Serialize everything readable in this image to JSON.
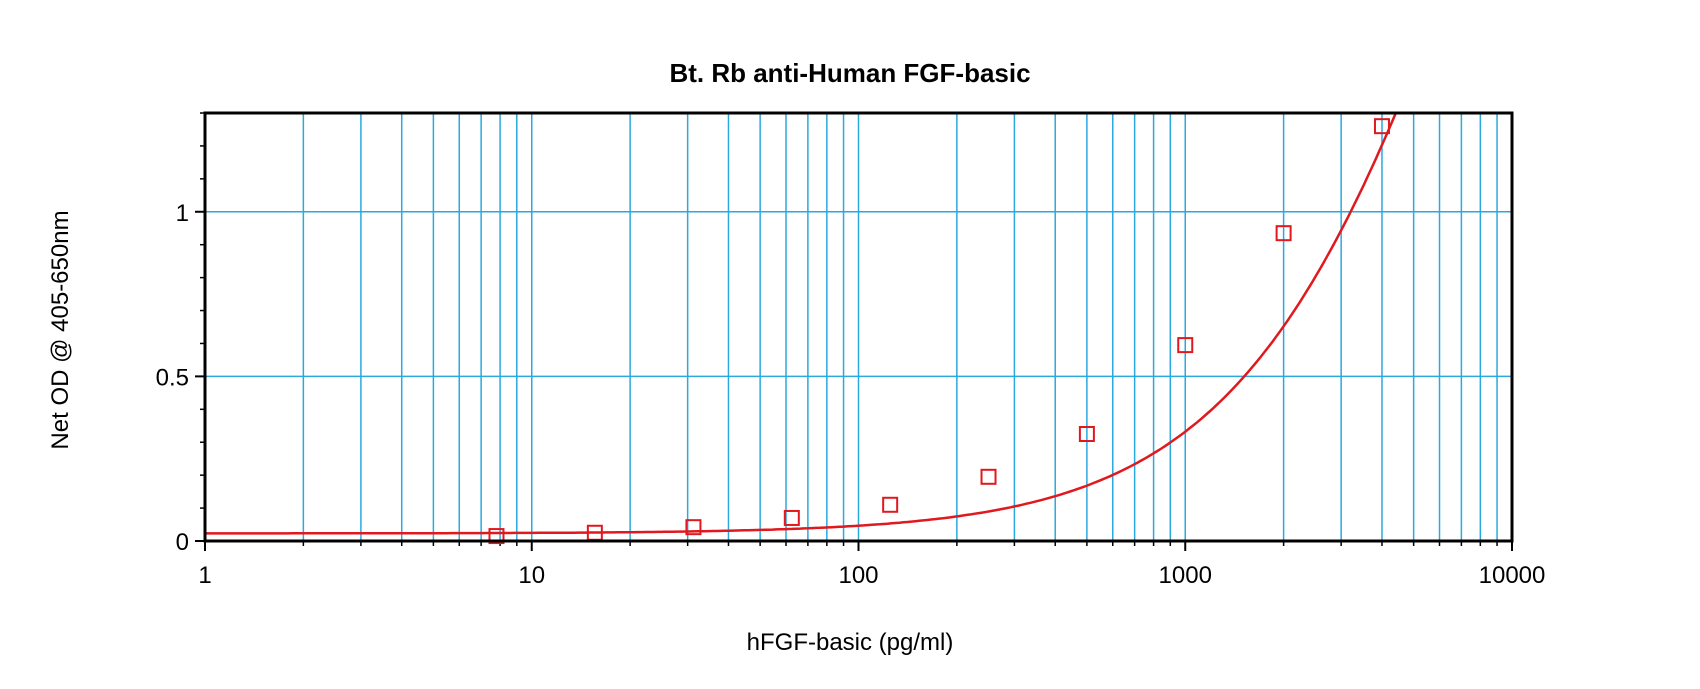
{
  "chart_data": {
    "type": "scatter",
    "title": "Bt. Rb anti-Human FGF-basic",
    "xlabel": "hFGF-basic (pg/ml)",
    "ylabel": "Net OD @ 405-650nm",
    "xscale": "log",
    "xlim": [
      1,
      10000
    ],
    "ylim": [
      0,
      1.3
    ],
    "x_ticks": [
      1,
      10,
      100,
      1000,
      10000
    ],
    "x_tick_labels": [
      "1",
      "10",
      "100",
      "1000",
      "10000"
    ],
    "y_ticks": [
      0,
      0.5,
      1
    ],
    "y_tick_labels": [
      "0",
      "0.5",
      "1"
    ],
    "grid": true,
    "colors": {
      "grid": "#2aa9df",
      "series": "#e0191e",
      "frame": "#000000"
    },
    "series": [
      {
        "marker": "open-square",
        "x": [
          7.8,
          15.6,
          31.25,
          62.5,
          125,
          250,
          500,
          1000,
          2000,
          4000
        ],
        "y": [
          0.015,
          0.025,
          0.042,
          0.07,
          0.11,
          0.195,
          0.325,
          0.595,
          0.935,
          1.26
        ]
      }
    ],
    "fit_curve": {
      "type": "4PL",
      "bottom": 0.023,
      "top": 4.2,
      "ec50": 9000,
      "hill": 1.15,
      "x_range": [
        1,
        4400
      ]
    }
  }
}
